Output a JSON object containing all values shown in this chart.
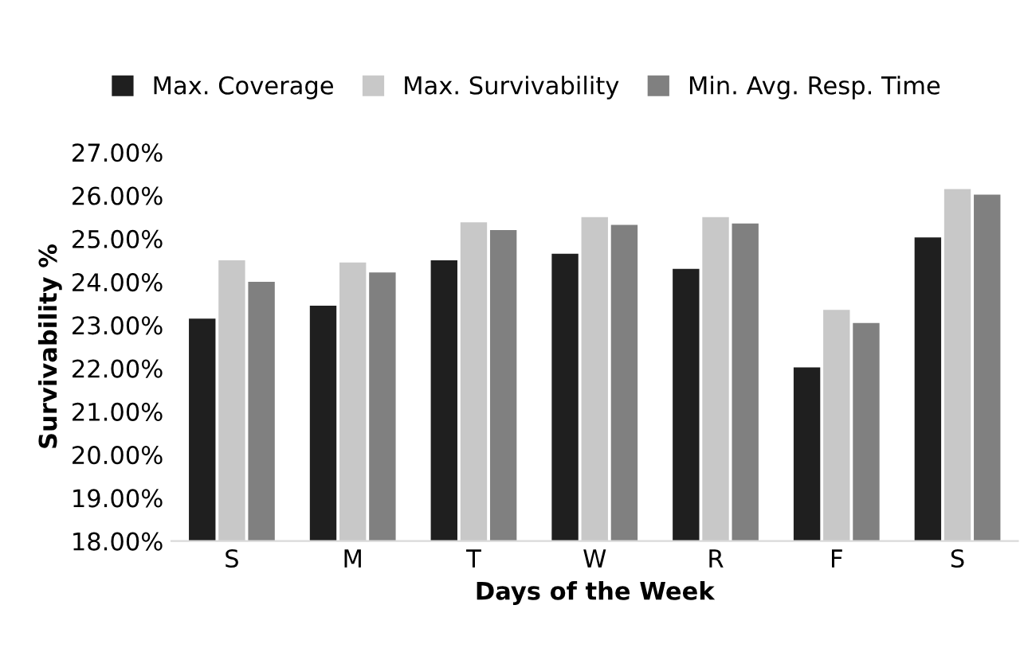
{
  "chart_data": {
    "type": "bar",
    "xlabel": "Days of the Week",
    "ylabel": "Survivability %",
    "categories": [
      "S",
      "M",
      "T",
      "W",
      "R",
      "F",
      "S"
    ],
    "series": [
      {
        "name": "Max. Coverage",
        "color": "#1f1f1f",
        "values": [
          23.15,
          23.45,
          24.5,
          24.65,
          24.3,
          22.02,
          25.03
        ]
      },
      {
        "name": "Max. Survivability",
        "color": "#c8c8c8",
        "values": [
          24.5,
          24.45,
          25.38,
          25.5,
          25.5,
          23.35,
          26.15
        ]
      },
      {
        "name": "Min. Avg. Resp. Time",
        "color": "#808080",
        "values": [
          24.0,
          24.22,
          25.2,
          25.32,
          25.35,
          23.05,
          26.02
        ]
      }
    ],
    "ylim": [
      18,
      27
    ],
    "yticks": [
      {
        "value": 18,
        "label": "18.00%"
      },
      {
        "value": 19,
        "label": "19.00%"
      },
      {
        "value": 20,
        "label": "20.00%"
      },
      {
        "value": 21,
        "label": "21.00%"
      },
      {
        "value": 22,
        "label": "22.00%"
      },
      {
        "value": 23,
        "label": "23.00%"
      },
      {
        "value": 24,
        "label": "24.00%"
      },
      {
        "value": 25,
        "label": "25.00%"
      },
      {
        "value": 26,
        "label": "26.00%"
      },
      {
        "value": 27,
        "label": "27.00%"
      }
    ],
    "grid": false,
    "legend": "top"
  }
}
